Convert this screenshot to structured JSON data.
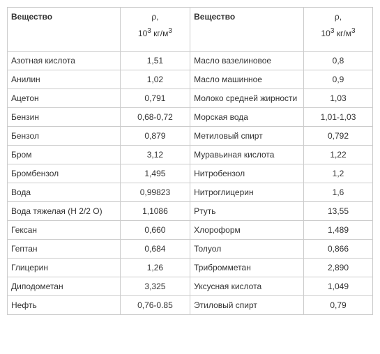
{
  "header": {
    "substance_label": "Вещество",
    "density_symbol": "ρ,",
    "density_unit_prefix": "10",
    "density_unit_exp1": "3",
    "density_unit_mid": " кг/м",
    "density_unit_exp2": "3"
  },
  "rows": [
    {
      "s1": "Азотная кислота",
      "v1": "1,51",
      "s2": "Масло вазелиновое",
      "v2": "0,8"
    },
    {
      "s1": "Анилин",
      "v1": "1,02",
      "s2": "Масло машинное",
      "v2": "0,9"
    },
    {
      "s1": "Ацетон",
      "v1": "0,791",
      "s2": "Молоко средней жирности",
      "v2": "1,03"
    },
    {
      "s1": "Бензин",
      "v1": "0,68-0,72",
      "s2": "Морская вода",
      "v2": "1,01-1,03"
    },
    {
      "s1": "Бензол",
      "v1": "0,879",
      "s2": "Метиловый спирт",
      "v2": "0,792"
    },
    {
      "s1": "Бром",
      "v1": "3,12",
      "s2": "Муравьиная кислота",
      "v2": "1,22"
    },
    {
      "s1": "Бромбензол",
      "v1": "1,495",
      "s2": "Нитробензол",
      "v2": "1,2"
    },
    {
      "s1": "Вода",
      "v1": "0,99823",
      "s2": "Нитроглицерин",
      "v2": "1,6"
    },
    {
      "s1": "Вода тяжелая (Н 2/2 О)",
      "v1": "1,1086",
      "s2": "Ртуть",
      "v2": "13,55"
    },
    {
      "s1": "Гексан",
      "v1": "0,660",
      "s2": "Хлороформ",
      "v2": "1,489"
    },
    {
      "s1": "Гептан",
      "v1": "0,684",
      "s2": "Толуол",
      "v2": "0,866"
    },
    {
      "s1": "Глицерин",
      "v1": "1,26",
      "s2": "Трибромметан",
      "v2": "2,890"
    },
    {
      "s1": "Диподометан",
      "v1": "3,325",
      "s2": "Уксусная кислота",
      "v2": "1,049"
    },
    {
      "s1": "Нефть",
      "v1": "0,76-0.85",
      "s2": "Этиловый спирт",
      "v2": "0,79"
    }
  ]
}
